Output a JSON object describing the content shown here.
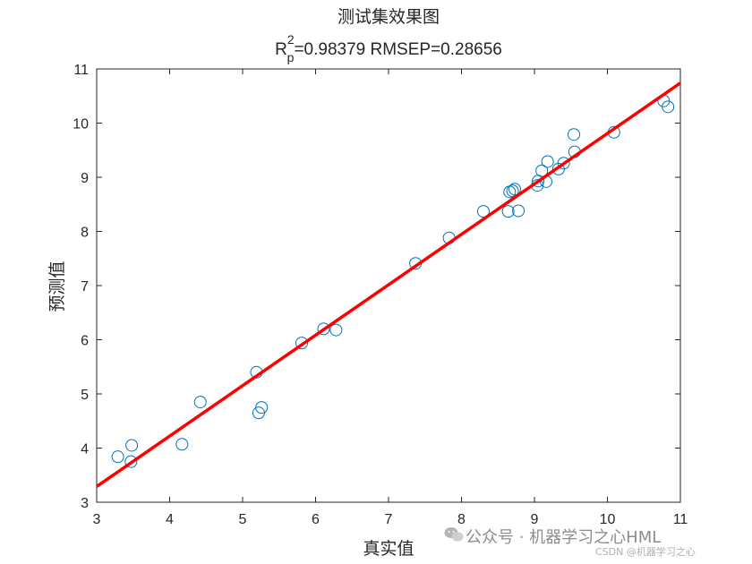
{
  "chart_data": {
    "type": "scatter",
    "title": "测试集效果图",
    "subtitle": {
      "r_main": "R",
      "r_sup": "2",
      "r_sub": "p",
      "rest": "=0.98379  RMSEP=0.28656"
    },
    "xlabel": "真实值",
    "ylabel": "预测值",
    "xlim": [
      3,
      11
    ],
    "ylim": [
      3,
      11
    ],
    "xticks": [
      "3",
      "4",
      "5",
      "6",
      "7",
      "8",
      "9",
      "10",
      "11"
    ],
    "yticks": [
      "3",
      "4",
      "5",
      "6",
      "7",
      "8",
      "9",
      "10",
      "11"
    ],
    "grid": false,
    "marker_color": "#0072BD",
    "line_color": "#ff0000",
    "fit_line": {
      "x": [
        3,
        11
      ],
      "y": [
        3.29,
        10.74
      ]
    },
    "points": [
      {
        "x": 3.29,
        "y": 3.84
      },
      {
        "x": 3.47,
        "y": 3.75
      },
      {
        "x": 3.48,
        "y": 4.05
      },
      {
        "x": 4.17,
        "y": 4.07
      },
      {
        "x": 4.42,
        "y": 4.85
      },
      {
        "x": 5.19,
        "y": 5.4
      },
      {
        "x": 5.22,
        "y": 4.65
      },
      {
        "x": 5.26,
        "y": 4.75
      },
      {
        "x": 5.81,
        "y": 5.94
      },
      {
        "x": 6.11,
        "y": 6.2
      },
      {
        "x": 6.28,
        "y": 6.18
      },
      {
        "x": 7.37,
        "y": 7.41
      },
      {
        "x": 7.83,
        "y": 7.88
      },
      {
        "x": 8.3,
        "y": 8.37
      },
      {
        "x": 8.64,
        "y": 8.37
      },
      {
        "x": 8.66,
        "y": 8.73
      },
      {
        "x": 8.7,
        "y": 8.75
      },
      {
        "x": 8.73,
        "y": 8.78
      },
      {
        "x": 8.78,
        "y": 8.38
      },
      {
        "x": 9.04,
        "y": 8.85
      },
      {
        "x": 9.05,
        "y": 8.93
      },
      {
        "x": 9.1,
        "y": 9.12
      },
      {
        "x": 9.16,
        "y": 8.92
      },
      {
        "x": 9.18,
        "y": 9.29
      },
      {
        "x": 9.33,
        "y": 9.15
      },
      {
        "x": 9.4,
        "y": 9.26
      },
      {
        "x": 9.54,
        "y": 9.79
      },
      {
        "x": 9.55,
        "y": 9.47
      },
      {
        "x": 10.09,
        "y": 9.83
      },
      {
        "x": 10.77,
        "y": 10.41
      },
      {
        "x": 10.83,
        "y": 10.3
      }
    ]
  },
  "watermark": {
    "main": "公众号 · 机器学习之心HML",
    "small": "CSDN @机器学习之心"
  }
}
